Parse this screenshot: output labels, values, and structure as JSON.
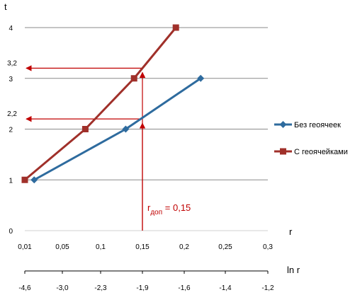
{
  "chart_data": {
    "type": "line",
    "y_axis_label": "t",
    "x_axis_label": "r",
    "x2_axis_label": "ln r",
    "x_ticks": [
      "0,01",
      "0,05",
      "0,1",
      "0,15",
      "0,2",
      "0,25",
      "0,3"
    ],
    "x_tick_values": [
      0.01,
      0.05,
      0.1,
      0.15,
      0.2,
      0.25,
      0.3
    ],
    "x2_ticks": [
      "-4,6",
      "-3,0",
      "-2,3",
      "-1,9",
      "-1,6",
      "-1,4",
      "-1,2"
    ],
    "y_ticks": [
      "0",
      "1",
      "2",
      "3",
      "4"
    ],
    "y_tick_values": [
      0,
      1,
      2,
      3,
      4
    ],
    "extra_y_labels": [
      {
        "text": "2,2",
        "value": 2.2
      },
      {
        "text": "3,2",
        "value": 3.2
      }
    ],
    "xlim": [
      0.01,
      0.3
    ],
    "ylim": [
      0,
      4
    ],
    "grid": "horizontal",
    "legend_position": "right",
    "series": [
      {
        "name": "Без геоячеек",
        "color": "#2e6b9e",
        "marker": "diamond",
        "points": [
          [
            0.02,
            1.0
          ],
          [
            0.13,
            2.0
          ],
          [
            0.22,
            3.0
          ]
        ]
      },
      {
        "name": "С геоячейками",
        "color": "#a0302a",
        "marker": "square",
        "points": [
          [
            0.01,
            1.0
          ],
          [
            0.08,
            2.0
          ],
          [
            0.14,
            3.0
          ],
          [
            0.19,
            4.0
          ]
        ]
      }
    ],
    "annotation": {
      "color": "#c00000",
      "x_value": 0.15,
      "marked_points": [
        {
          "y": 2.2
        },
        {
          "y": 3.2
        }
      ],
      "label_main": "r",
      "label_sub": "доп",
      "label_rest": " = 0,15"
    }
  }
}
